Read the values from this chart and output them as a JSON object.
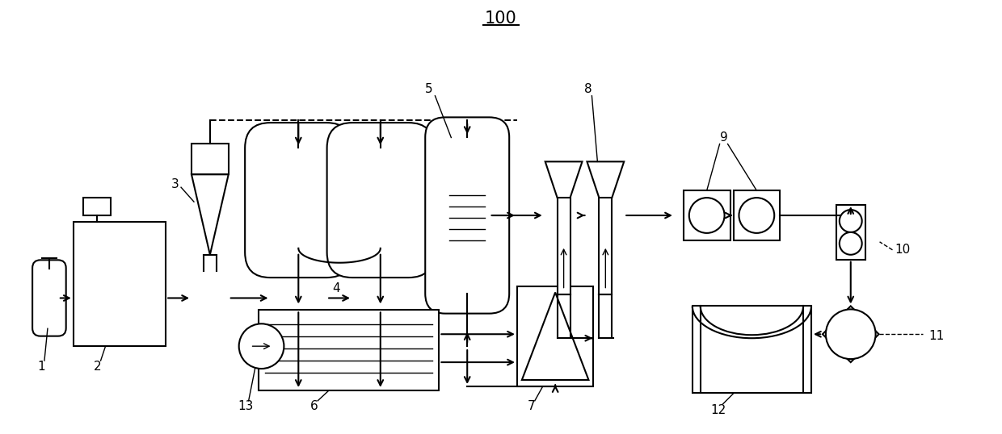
{
  "title": "100",
  "bg": "#ffffff",
  "lc": "#000000",
  "lw": 1.5
}
